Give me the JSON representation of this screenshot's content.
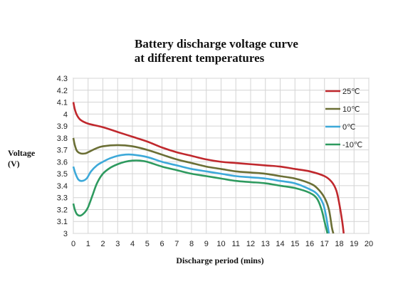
{
  "chart_data": {
    "type": "line",
    "title": [
      "Battery discharge voltage curve",
      "at different temperatures"
    ],
    "xlabel": "Discharge period (mins)",
    "ylabel": [
      "Voltage",
      "(V)"
    ],
    "xlim": [
      0,
      20
    ],
    "ylim": [
      3,
      4.3
    ],
    "x_ticks": [
      "0",
      "1",
      "2",
      "3",
      "4",
      "5",
      "6",
      "7",
      "8",
      "9",
      "10",
      "11",
      "12",
      "13",
      "14",
      "15",
      "16",
      "17",
      "18",
      "19",
      "20"
    ],
    "y_ticks": [
      "3",
      "3.1",
      "3.2",
      "3.3",
      "3.4",
      "3.5",
      "3.6",
      "3.7",
      "3.8",
      "3.9",
      "4",
      "4.1",
      "4.2",
      "4.3"
    ],
    "grid": true,
    "legend_position": "top-right",
    "series": [
      {
        "name": "25℃",
        "color": "#c0282d",
        "points": [
          [
            0,
            4.1
          ],
          [
            0.1,
            4.04
          ],
          [
            0.25,
            3.99
          ],
          [
            0.5,
            3.95
          ],
          [
            1,
            3.92
          ],
          [
            2,
            3.89
          ],
          [
            3,
            3.85
          ],
          [
            4,
            3.81
          ],
          [
            5,
            3.77
          ],
          [
            6,
            3.72
          ],
          [
            7,
            3.68
          ],
          [
            8,
            3.65
          ],
          [
            9,
            3.62
          ],
          [
            10,
            3.6
          ],
          [
            11,
            3.59
          ],
          [
            12,
            3.58
          ],
          [
            13,
            3.57
          ],
          [
            14,
            3.56
          ],
          [
            15,
            3.54
          ],
          [
            16,
            3.52
          ],
          [
            17,
            3.48
          ],
          [
            17.5,
            3.43
          ],
          [
            17.8,
            3.36
          ],
          [
            18,
            3.25
          ],
          [
            18.2,
            3.1
          ],
          [
            18.3,
            3.0
          ]
        ]
      },
      {
        "name": "10℃",
        "color": "#6b6f35",
        "points": [
          [
            0,
            3.8
          ],
          [
            0.1,
            3.74
          ],
          [
            0.25,
            3.69
          ],
          [
            0.5,
            3.67
          ],
          [
            0.8,
            3.67
          ],
          [
            1,
            3.68
          ],
          [
            1.5,
            3.71
          ],
          [
            2,
            3.73
          ],
          [
            3,
            3.74
          ],
          [
            4,
            3.73
          ],
          [
            5,
            3.7
          ],
          [
            6,
            3.66
          ],
          [
            7,
            3.62
          ],
          [
            8,
            3.59
          ],
          [
            9,
            3.56
          ],
          [
            10,
            3.54
          ],
          [
            11,
            3.52
          ],
          [
            12,
            3.51
          ],
          [
            13,
            3.5
          ],
          [
            14,
            3.48
          ],
          [
            15,
            3.46
          ],
          [
            16,
            3.42
          ],
          [
            16.5,
            3.38
          ],
          [
            17,
            3.3
          ],
          [
            17.3,
            3.2
          ],
          [
            17.5,
            3.05
          ],
          [
            17.6,
            3.0
          ]
        ]
      },
      {
        "name": "0℃",
        "color": "#3da9d9",
        "points": [
          [
            0,
            3.56
          ],
          [
            0.15,
            3.5
          ],
          [
            0.35,
            3.45
          ],
          [
            0.6,
            3.44
          ],
          [
            0.9,
            3.46
          ],
          [
            1.2,
            3.52
          ],
          [
            1.6,
            3.57
          ],
          [
            2,
            3.6
          ],
          [
            2.5,
            3.63
          ],
          [
            3,
            3.65
          ],
          [
            3.5,
            3.66
          ],
          [
            4,
            3.66
          ],
          [
            5,
            3.64
          ],
          [
            6,
            3.6
          ],
          [
            7,
            3.57
          ],
          [
            8,
            3.54
          ],
          [
            9,
            3.52
          ],
          [
            10,
            3.5
          ],
          [
            11,
            3.48
          ],
          [
            12,
            3.47
          ],
          [
            13,
            3.46
          ],
          [
            14,
            3.44
          ],
          [
            15,
            3.42
          ],
          [
            16,
            3.37
          ],
          [
            16.5,
            3.33
          ],
          [
            16.9,
            3.25
          ],
          [
            17.1,
            3.15
          ],
          [
            17.3,
            3.0
          ]
        ]
      },
      {
        "name": "-10℃",
        "color": "#2e9a5f",
        "points": [
          [
            0,
            3.25
          ],
          [
            0.1,
            3.2
          ],
          [
            0.25,
            3.16
          ],
          [
            0.5,
            3.15
          ],
          [
            0.8,
            3.18
          ],
          [
            1,
            3.22
          ],
          [
            1.3,
            3.32
          ],
          [
            1.6,
            3.42
          ],
          [
            2,
            3.5
          ],
          [
            2.5,
            3.55
          ],
          [
            3,
            3.58
          ],
          [
            3.5,
            3.6
          ],
          [
            4,
            3.61
          ],
          [
            4.5,
            3.61
          ],
          [
            5,
            3.6
          ],
          [
            6,
            3.56
          ],
          [
            7,
            3.53
          ],
          [
            8,
            3.5
          ],
          [
            9,
            3.48
          ],
          [
            10,
            3.46
          ],
          [
            11,
            3.44
          ],
          [
            12,
            3.43
          ],
          [
            13,
            3.42
          ],
          [
            14,
            3.4
          ],
          [
            15,
            3.38
          ],
          [
            16,
            3.34
          ],
          [
            16.5,
            3.29
          ],
          [
            16.8,
            3.2
          ],
          [
            17,
            3.1
          ],
          [
            17.2,
            3.0
          ]
        ]
      }
    ]
  }
}
